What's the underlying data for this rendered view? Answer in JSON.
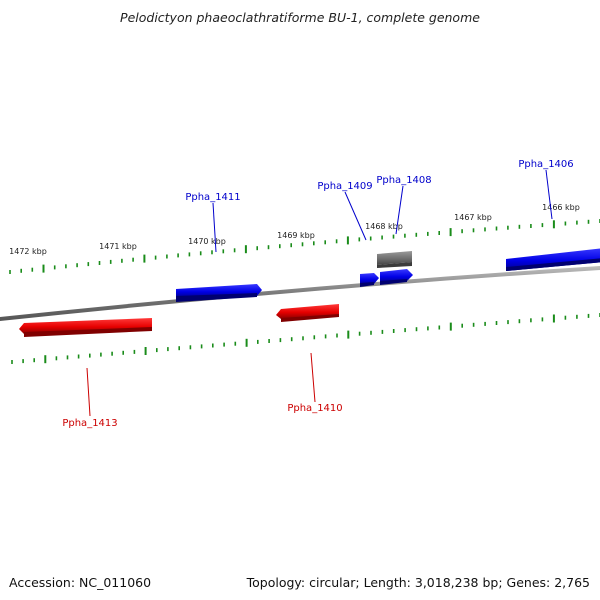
{
  "title": "Pelodictyon phaeoclathratiforme BU-1, complete genome",
  "footer": {
    "accession": "Accession: NC_011060",
    "summary": "Topology: circular; Length: 3,018,238 bp; Genes: 2,765"
  },
  "colors": {
    "forward_strand": "#0000ee",
    "reverse_strand": "#ee0000",
    "other_feature": "#707070",
    "ticks": "#1a8c1a",
    "backbone": "#808080"
  },
  "scale": {
    "unit": "kbp",
    "labels": [
      "1472 kbp",
      "1471 kbp",
      "1470 kbp",
      "1469 kbp",
      "1468 kbp",
      "1467 kbp",
      "1466 kbp"
    ]
  },
  "genes": [
    {
      "label": "Ppha_1406",
      "strand": "forward",
      "color": "#0000ee"
    },
    {
      "label": "Ppha_1408",
      "strand": "forward",
      "color": "#0000ee"
    },
    {
      "label": "Ppha_1409",
      "strand": "forward",
      "color": "#0000ee"
    },
    {
      "label": "Ppha_1410",
      "strand": "reverse",
      "color": "#ee0000"
    },
    {
      "label": "Ppha_1411",
      "strand": "forward",
      "color": "#0000ee"
    },
    {
      "label": "Ppha_1413",
      "strand": "reverse",
      "color": "#ee0000"
    }
  ]
}
